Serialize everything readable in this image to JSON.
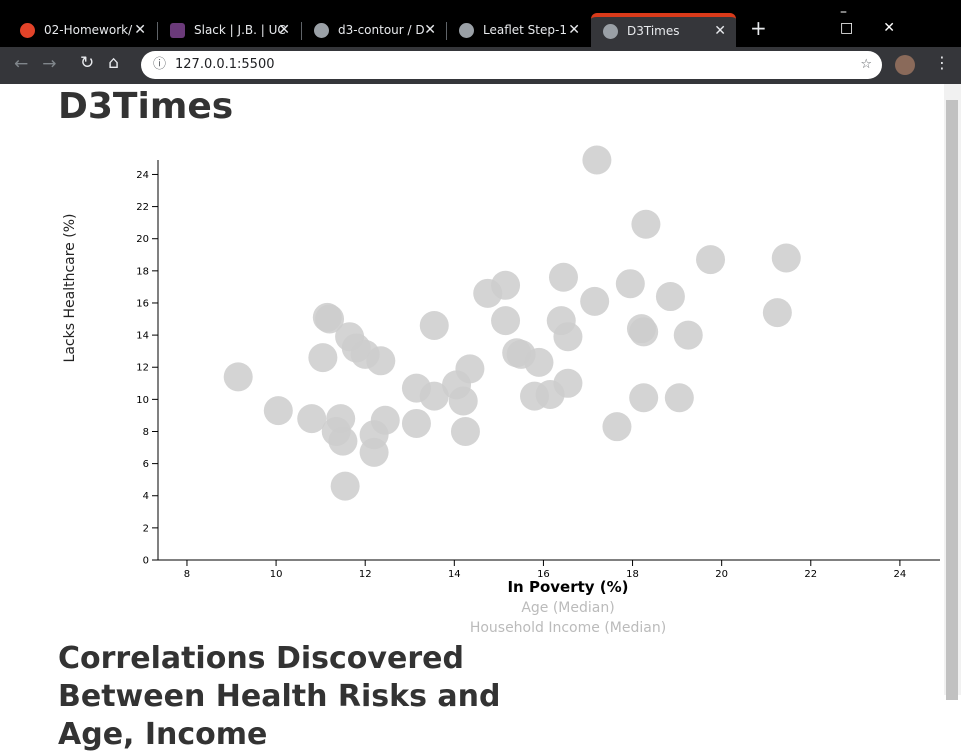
{
  "browser": {
    "tabs": [
      "02-Homework/",
      "Slack | J.B. | UC",
      "d3-contour / D",
      "Leaflet Step-1",
      "D3Times"
    ],
    "url": "127.0.0.1:5500"
  },
  "header": {
    "title": "D3Times"
  },
  "chart_data": {
    "type": "scatter",
    "xlabel": "In Poverty (%)",
    "ylabel": "Lacks Healthcare (%)",
    "alt_xlabels": [
      "Age (Median)",
      "Household Income (Median)"
    ],
    "color": "#cccccc",
    "xlim": [
      7.35,
      24.9
    ],
    "ylim": [
      0,
      24.9
    ],
    "xticks": [
      8,
      10,
      12,
      14,
      16,
      18,
      20,
      22,
      24
    ],
    "yticks": [
      0,
      2,
      4,
      6,
      8,
      10,
      12,
      14,
      16,
      18,
      20,
      22,
      24
    ],
    "x": [
      17.2,
      18.3,
      19.75,
      21.45,
      16.45,
      15.15,
      14.75,
      17.95,
      18.85,
      17.15,
      21.25,
      11.15,
      11.2,
      13.55,
      15.15,
      16.4,
      18.2,
      18.25,
      16.55,
      19.25,
      11.65,
      11.8,
      12.0,
      12.35,
      11.05,
      15.4,
      15.5,
      15.9,
      14.35,
      9.15,
      13.15,
      14.05,
      16.55,
      13.55,
      14.2,
      15.8,
      16.15,
      18.25,
      19.05,
      10.05,
      10.8,
      11.45,
      12.45,
      13.15,
      17.65,
      11.35,
      14.25,
      12.2,
      11.5,
      12.2,
      11.55
    ],
    "values": [
      24.9,
      20.9,
      18.7,
      18.8,
      17.6,
      17.1,
      16.6,
      17.2,
      16.4,
      16.1,
      15.4,
      15.1,
      15.0,
      14.6,
      14.9,
      14.9,
      14.4,
      14.2,
      13.9,
      14.0,
      13.9,
      13.2,
      12.8,
      12.4,
      12.6,
      12.9,
      12.8,
      12.3,
      11.9,
      11.4,
      10.7,
      10.9,
      11.0,
      10.2,
      9.9,
      10.2,
      10.3,
      10.1,
      10.1,
      9.3,
      8.8,
      8.8,
      8.7,
      8.5,
      8.3,
      8.0,
      8.0,
      7.8,
      7.4,
      6.7,
      4.6
    ]
  },
  "section": {
    "heading": "Correlations Discovered Between Health Risks and Age, Income"
  }
}
